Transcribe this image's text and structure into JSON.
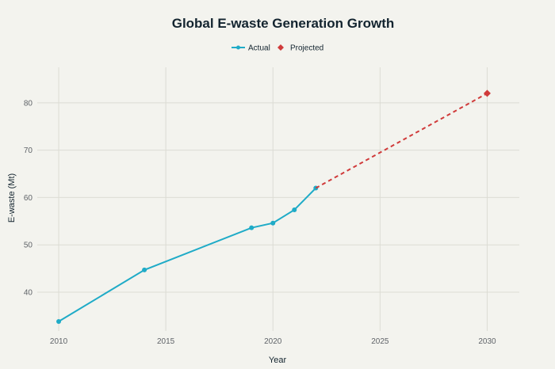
{
  "chart_data": {
    "type": "line",
    "title": "Global E-waste Generation Growth",
    "xlabel": "Year",
    "ylabel": "E-waste (Mt)",
    "xlim": [
      2009,
      2031.5
    ],
    "ylim": [
      31.8,
      87.5
    ],
    "x_ticks": [
      2010,
      2015,
      2020,
      2025,
      2030
    ],
    "y_ticks": [
      40,
      50,
      60,
      70,
      80
    ],
    "grid": true,
    "legend_position": "top-center",
    "series": [
      {
        "name": "Actual",
        "color": "#1fabc7",
        "style": "solid",
        "marker": "circle",
        "x": [
          2010,
          2014,
          2019,
          2020,
          2021,
          2022
        ],
        "y": [
          33.8,
          44.7,
          53.6,
          54.6,
          57.4,
          62.0
        ]
      },
      {
        "name": "Projected",
        "color": "#d03a3a",
        "style": "dashed",
        "marker": "diamond",
        "x": [
          2022,
          2030
        ],
        "y": [
          62.0,
          82.0
        ],
        "marker_x": [
          2030
        ],
        "marker_y": [
          82.0
        ]
      }
    ]
  }
}
